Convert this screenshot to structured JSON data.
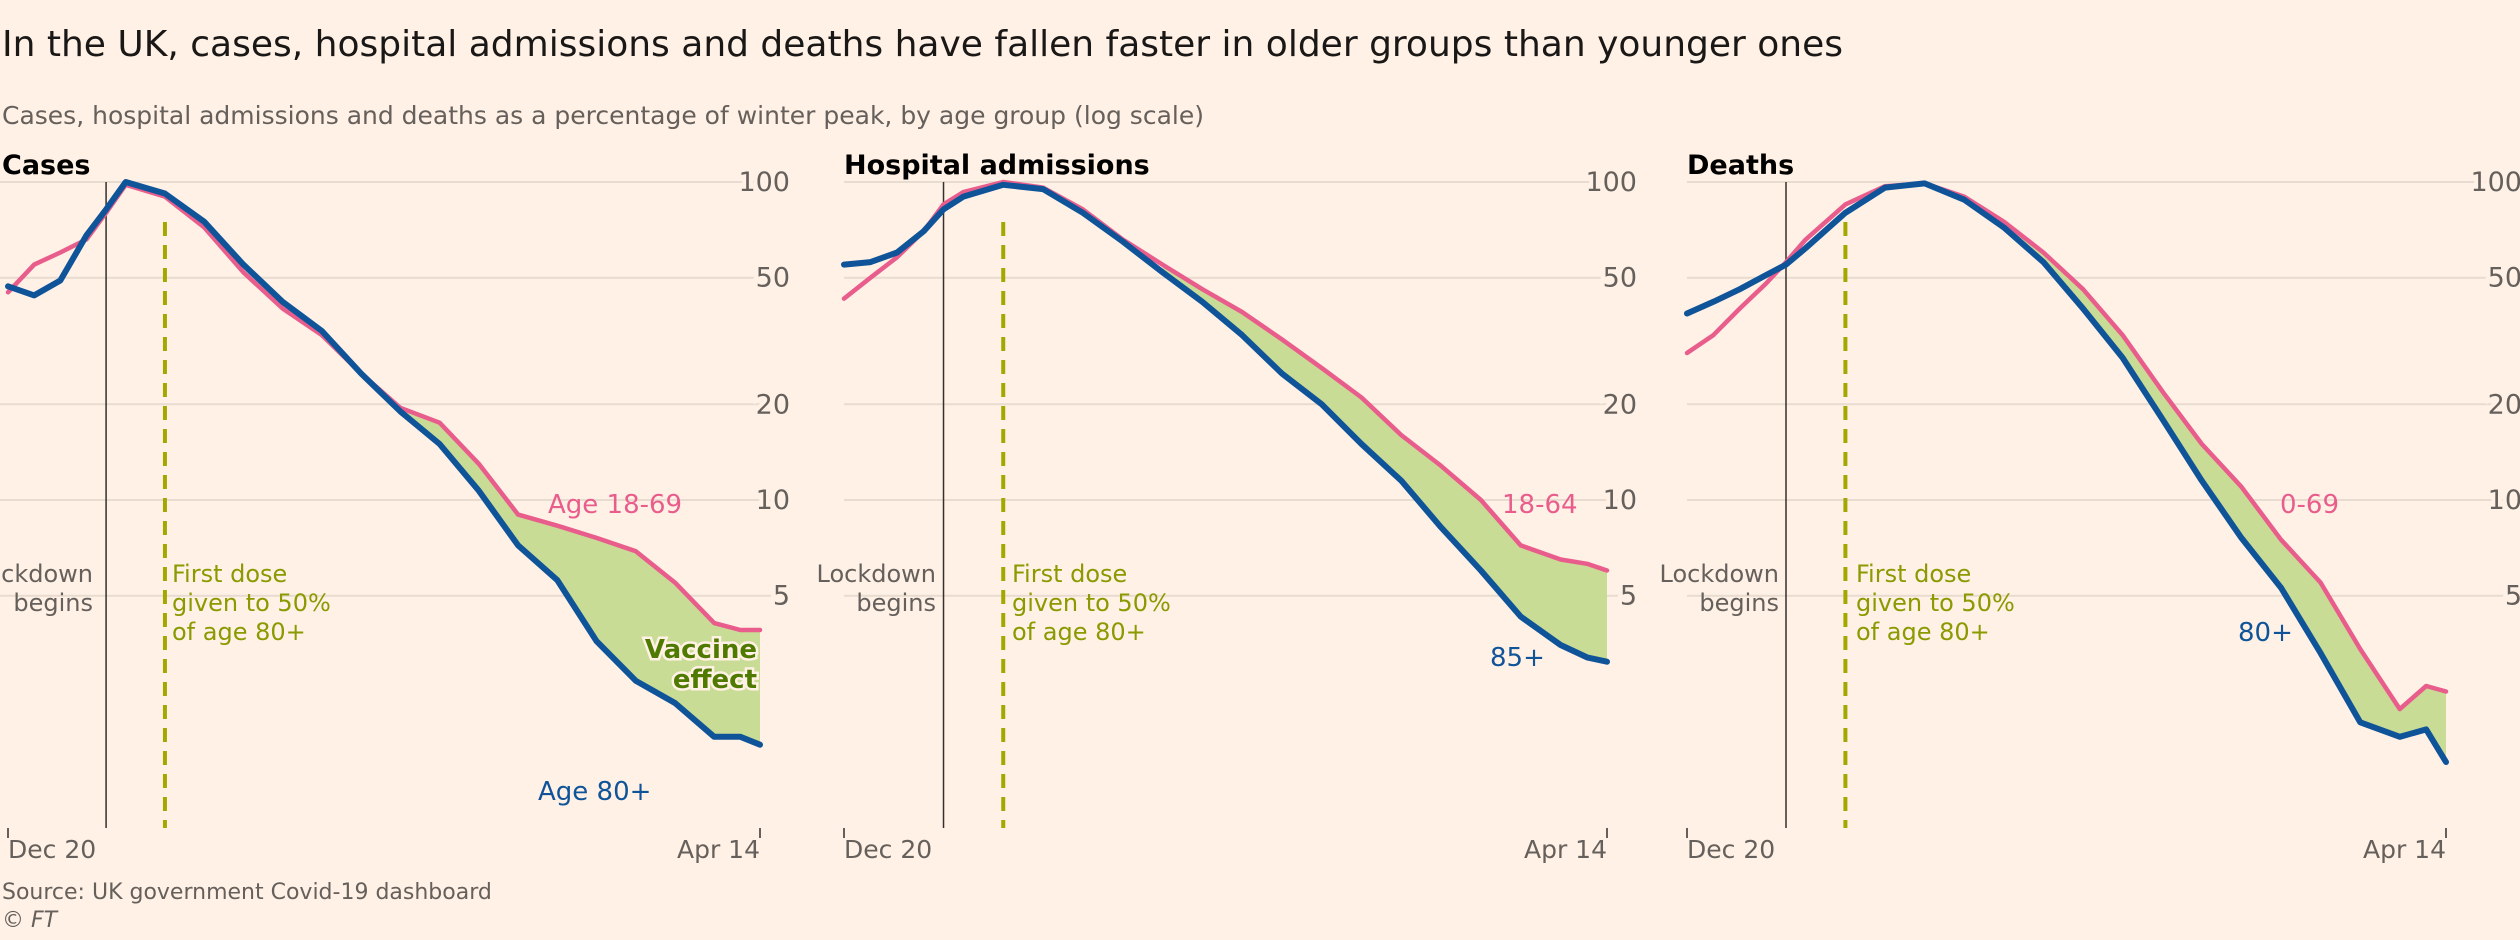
{
  "title": "In the UK, cases, hospital admissions and deaths have fallen faster in older groups than younger ones",
  "subtitle": "Cases, hospital admissions and deaths as a percentage of winter peak, by age group (log scale)",
  "source": "Source: UK government Covid-19 dashboard",
  "credit": "© FT",
  "colors": {
    "background": "#fff1e5",
    "younger": "#e95d8c",
    "older": "#0f5499",
    "gap_fill": "#c9dc95",
    "first_dose": "#a3a800",
    "grid": "#e8dbcf"
  },
  "annotations": {
    "lockdown": [
      "Lockdown",
      "begins"
    ],
    "lockdown_date": "2021-01-04",
    "first_dose": [
      "First dose",
      "given to 50%",
      "of age 80+"
    ],
    "first_dose_date": "2021-01-13",
    "vaccine_effect": [
      "Vaccine",
      "effect"
    ]
  },
  "chart_data": [
    {
      "type": "line",
      "title": "Cases",
      "yscale": "log",
      "ylim": [
        0.93,
        100
      ],
      "yticks": [
        5,
        10,
        20,
        50,
        100
      ],
      "xticks": [
        "Dec 20",
        "Apr 14"
      ],
      "xlim": [
        "2020-12-20",
        "2021-04-14"
      ],
      "grid": true,
      "x": [
        "2020-12-20",
        "2020-12-24",
        "2020-12-28",
        "2021-01-01",
        "2021-01-04",
        "2021-01-07",
        "2021-01-13",
        "2021-01-19",
        "2021-01-25",
        "2021-01-31",
        "2021-02-06",
        "2021-02-12",
        "2021-02-18",
        "2021-02-24",
        "2021-03-02",
        "2021-03-08",
        "2021-03-14",
        "2021-03-20",
        "2021-03-26",
        "2021-04-01",
        "2021-04-07",
        "2021-04-11",
        "2021-04-14"
      ],
      "series": [
        {
          "name": "Age 18-69",
          "values": [
            45,
            55,
            60,
            66,
            80,
            98,
            90,
            72,
            52,
            40,
            33,
            25,
            19.5,
            17.5,
            13,
            9,
            8.3,
            7.6,
            6.9,
            5.5,
            4.1,
            3.9,
            3.9
          ]
        },
        {
          "name": "Age 80+",
          "values": [
            47,
            44,
            49,
            68,
            82,
            100,
            92,
            75,
            55,
            42,
            34,
            25,
            19,
            15,
            10.7,
            7.2,
            5.6,
            3.6,
            2.7,
            2.3,
            1.8,
            1.8,
            1.7
          ]
        }
      ]
    },
    {
      "type": "line",
      "title": "Hospital admissions",
      "yscale": "log",
      "ylim": [
        0.93,
        100
      ],
      "yticks": [
        5,
        10,
        20,
        50,
        100
      ],
      "xticks": [
        "Dec 20",
        "Apr 14"
      ],
      "xlim": [
        "2020-12-20",
        "2021-04-14"
      ],
      "grid": true,
      "x": [
        "2020-12-20",
        "2020-12-24",
        "2020-12-28",
        "2021-01-01",
        "2021-01-04",
        "2021-01-07",
        "2021-01-13",
        "2021-01-19",
        "2021-01-25",
        "2021-01-31",
        "2021-02-06",
        "2021-02-12",
        "2021-02-18",
        "2021-02-24",
        "2021-03-02",
        "2021-03-08",
        "2021-03-14",
        "2021-03-20",
        "2021-03-26",
        "2021-04-01",
        "2021-04-07",
        "2021-04-11",
        "2021-04-14"
      ],
      "series": [
        {
          "name": "18-64",
          "values": [
            43,
            50,
            58,
            70,
            85,
            93,
            100,
            96,
            82,
            66,
            55,
            46,
            39,
            32,
            26,
            21,
            16,
            12.8,
            10,
            7.2,
            6.5,
            6.3,
            6.0
          ]
        },
        {
          "name": "85+",
          "values": [
            55,
            56,
            60,
            70,
            82,
            90,
            98,
            95,
            80,
            65,
            52,
            42,
            33,
            25,
            20,
            15,
            11.5,
            8.2,
            6,
            4.3,
            3.5,
            3.2,
            3.1
          ]
        }
      ]
    },
    {
      "type": "line",
      "title": "Deaths",
      "yscale": "log",
      "ylim": [
        0.93,
        100
      ],
      "yticks": [
        5,
        10,
        20,
        50,
        100
      ],
      "xticks": [
        "Dec 20",
        "Apr 14"
      ],
      "xlim": [
        "2020-12-20",
        "2021-04-14"
      ],
      "grid": true,
      "x": [
        "2020-12-20",
        "2020-12-24",
        "2020-12-28",
        "2021-01-01",
        "2021-01-04",
        "2021-01-07",
        "2021-01-13",
        "2021-01-19",
        "2021-01-25",
        "2021-01-31",
        "2021-02-06",
        "2021-02-12",
        "2021-02-18",
        "2021-02-24",
        "2021-03-02",
        "2021-03-08",
        "2021-03-14",
        "2021-03-20",
        "2021-03-26",
        "2021-04-01",
        "2021-04-07",
        "2021-04-11",
        "2021-04-14"
      ],
      "series": [
        {
          "name": "0-69",
          "values": [
            29,
            33,
            40,
            48,
            56,
            66,
            85,
            97,
            99,
            90,
            75,
            60,
            46,
            33,
            22,
            15,
            11,
            7.5,
            5.5,
            3.4,
            2.2,
            2.6,
            2.5
          ]
        },
        {
          "name": "80+",
          "values": [
            38.6,
            42,
            46,
            51,
            55,
            62,
            80,
            96,
            99,
            88,
            72,
            56,
            40,
            28,
            18,
            11.5,
            7.6,
            5.3,
            3.3,
            2.0,
            1.8,
            1.9,
            1.5
          ]
        }
      ]
    }
  ]
}
